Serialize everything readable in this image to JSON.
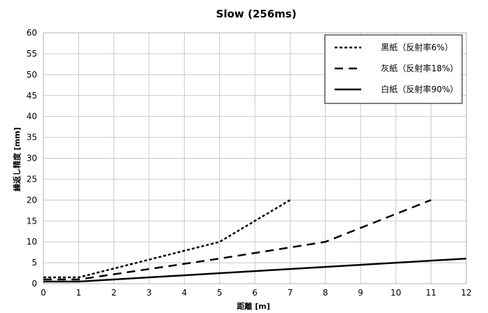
{
  "chart_data": {
    "type": "line",
    "title": "Slow (256ms)",
    "xlabel": "距離 [m]",
    "ylabel": "繰返し精度 [mm]",
    "xlim": [
      0,
      12
    ],
    "ylim": [
      0,
      60
    ],
    "x_ticks": [
      "0",
      "1",
      "2",
      "3",
      "4",
      "5",
      "6",
      "7",
      "8",
      "9",
      "10",
      "11",
      "12"
    ],
    "y_ticks": [
      "0",
      "5",
      "10",
      "15",
      "20",
      "25",
      "30",
      "35",
      "40",
      "45",
      "50",
      "55",
      "60"
    ],
    "grid": true,
    "legend_position": "top-right",
    "series": [
      {
        "name": "黒紙（反射率6%）",
        "line_style": "dotted",
        "color": "#000000",
        "points": [
          [
            0,
            1.5
          ],
          [
            1,
            1.5
          ],
          [
            5,
            10
          ],
          [
            7,
            20
          ]
        ]
      },
      {
        "name": "灰紙（反射率18%）",
        "line_style": "dashed",
        "color": "#000000",
        "points": [
          [
            0,
            1
          ],
          [
            1,
            1
          ],
          [
            5,
            6
          ],
          [
            8,
            10
          ],
          [
            11,
            20
          ]
        ]
      },
      {
        "name": "白紙（反射率90%）",
        "line_style": "solid",
        "color": "#000000",
        "points": [
          [
            0,
            0.5
          ],
          [
            1,
            0.5
          ],
          [
            5,
            2.5
          ],
          [
            12,
            6
          ]
        ]
      }
    ]
  }
}
